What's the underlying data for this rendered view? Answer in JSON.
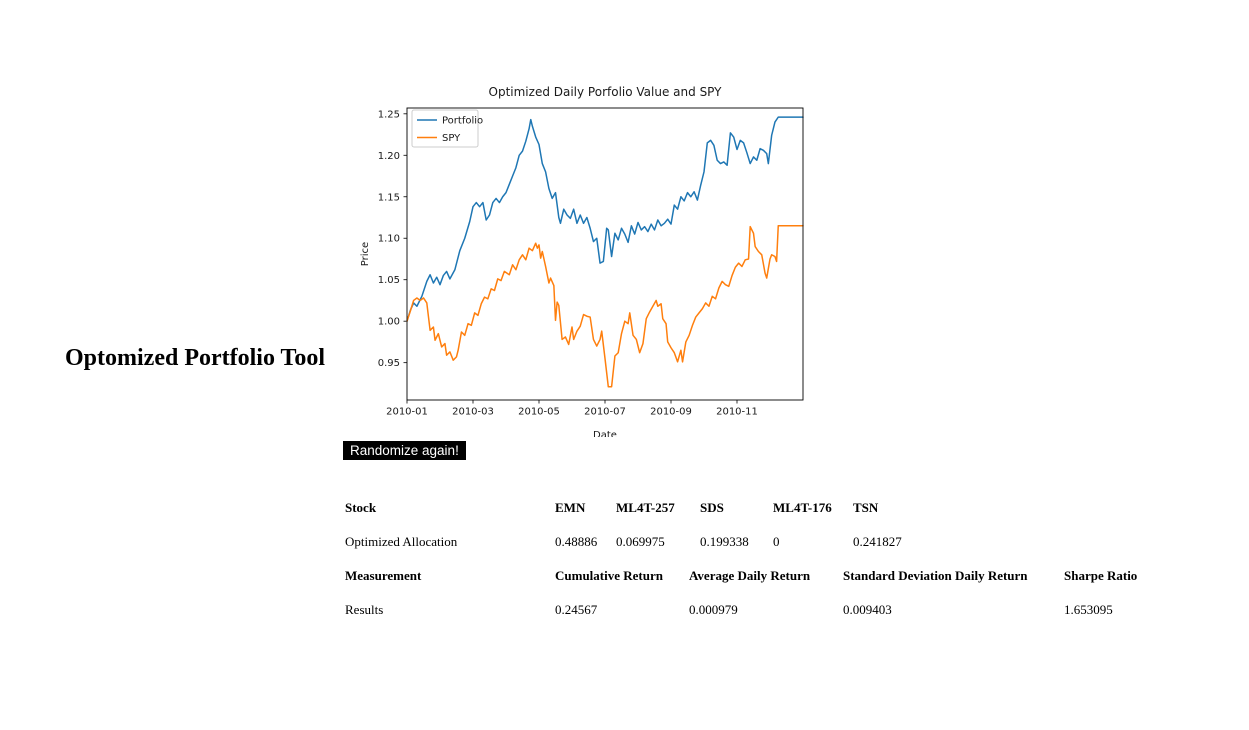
{
  "page": {
    "title": "Optomized Portfolio Tool"
  },
  "randomize_button": {
    "label": "Randomize again!",
    "bg": "#000000",
    "fg": "#ffffff"
  },
  "allocation_table": {
    "header": [
      "Stock",
      "EMN",
      "ML4T-257",
      "SDS",
      "ML4T-176",
      "TSN"
    ],
    "rows": [
      [
        "Optimized Allocation",
        "0.48886",
        "0.069975",
        "0.199338",
        "0",
        "0.241827"
      ]
    ]
  },
  "results_table": {
    "header": [
      "Measurement",
      "Cumulative Return",
      "Average Daily Return",
      "Standard Deviation Daily Return",
      "Sharpe Ratio"
    ],
    "rows": [
      [
        "Results",
        "0.24567",
        "0.000979",
        "0.009403",
        "1.653095"
      ]
    ]
  },
  "chart_data": {
    "type": "line",
    "title": "Optimized Daily Porfolio Value and SPY",
    "xlabel": "Date",
    "ylabel": "Price",
    "x_unit": "months since 2010-01-01",
    "xlim": [
      0,
      12
    ],
    "ylim": [
      0.905,
      1.257
    ],
    "xtick_pos": [
      0,
      2,
      4,
      6,
      8,
      10
    ],
    "xtick_labels": [
      "2010-01",
      "2010-03",
      "2010-05",
      "2010-07",
      "2010-09",
      "2010-11"
    ],
    "ytick_vals": [
      0.95,
      1.0,
      1.05,
      1.1,
      1.15,
      1.2,
      1.25
    ],
    "ytick_labels": [
      "0.95",
      "1.00",
      "1.05",
      "1.10",
      "1.15",
      "1.20",
      "1.25"
    ],
    "grid": false,
    "legend": {
      "position": "upper left",
      "entries": [
        "Portfolio",
        "SPY"
      ]
    },
    "series": [
      {
        "name": "Portfolio",
        "color": "#1f77b4",
        "x": [
          0,
          0.1,
          0.2,
          0.3,
          0.45,
          0.6,
          0.7,
          0.8,
          0.9,
          1.0,
          1.1,
          1.2,
          1.3,
          1.45,
          1.6,
          1.75,
          1.9,
          2.0,
          2.1,
          2.2,
          2.3,
          2.4,
          2.5,
          2.6,
          2.7,
          2.8,
          2.9,
          3.0,
          3.1,
          3.2,
          3.3,
          3.4,
          3.5,
          3.6,
          3.7,
          3.75,
          3.8,
          3.9,
          4.0,
          4.1,
          4.2,
          4.3,
          4.4,
          4.5,
          4.6,
          4.65,
          4.75,
          4.85,
          4.95,
          5.05,
          5.15,
          5.25,
          5.35,
          5.45,
          5.55,
          5.65,
          5.75,
          5.85,
          5.95,
          6.05,
          6.1,
          6.2,
          6.3,
          6.4,
          6.5,
          6.6,
          6.7,
          6.8,
          6.9,
          7.0,
          7.1,
          7.2,
          7.3,
          7.4,
          7.5,
          7.6,
          7.7,
          7.8,
          7.9,
          8.0,
          8.1,
          8.2,
          8.3,
          8.4,
          8.5,
          8.6,
          8.7,
          8.8,
          8.9,
          9.0,
          9.1,
          9.2,
          9.3,
          9.4,
          9.5,
          9.6,
          9.7,
          9.8,
          9.9,
          10.0,
          10.1,
          10.2,
          10.3,
          10.4,
          10.5,
          10.6,
          10.7,
          10.8,
          10.9,
          10.95,
          11.05,
          11.15,
          11.25,
          12.0
        ],
        "y": [
          1.0,
          1.013,
          1.022,
          1.018,
          1.03,
          1.048,
          1.056,
          1.046,
          1.053,
          1.044,
          1.055,
          1.06,
          1.051,
          1.062,
          1.085,
          1.1,
          1.12,
          1.138,
          1.143,
          1.138,
          1.143,
          1.122,
          1.128,
          1.143,
          1.148,
          1.143,
          1.15,
          1.155,
          1.165,
          1.175,
          1.185,
          1.2,
          1.205,
          1.217,
          1.232,
          1.243,
          1.235,
          1.222,
          1.213,
          1.19,
          1.18,
          1.16,
          1.148,
          1.155,
          1.125,
          1.118,
          1.135,
          1.128,
          1.124,
          1.135,
          1.118,
          1.128,
          1.118,
          1.125,
          1.112,
          1.096,
          1.1,
          1.07,
          1.072,
          1.112,
          1.11,
          1.078,
          1.106,
          1.098,
          1.112,
          1.105,
          1.095,
          1.115,
          1.105,
          1.119,
          1.11,
          1.114,
          1.108,
          1.117,
          1.11,
          1.122,
          1.115,
          1.118,
          1.123,
          1.117,
          1.14,
          1.135,
          1.15,
          1.145,
          1.155,
          1.15,
          1.156,
          1.146,
          1.164,
          1.18,
          1.215,
          1.218,
          1.212,
          1.194,
          1.19,
          1.192,
          1.188,
          1.227,
          1.222,
          1.207,
          1.218,
          1.215,
          1.203,
          1.19,
          1.198,
          1.194,
          1.208,
          1.206,
          1.202,
          1.19,
          1.224,
          1.24,
          1.246,
          1.246
        ]
      },
      {
        "name": "SPY",
        "color": "#ff7f0e",
        "x": [
          0,
          0.1,
          0.2,
          0.3,
          0.4,
          0.5,
          0.6,
          0.7,
          0.8,
          0.85,
          0.95,
          1.05,
          1.15,
          1.2,
          1.3,
          1.4,
          1.5,
          1.55,
          1.65,
          1.75,
          1.85,
          1.95,
          2.05,
          2.15,
          2.25,
          2.35,
          2.45,
          2.55,
          2.65,
          2.75,
          2.85,
          2.95,
          3.1,
          3.2,
          3.3,
          3.4,
          3.5,
          3.6,
          3.7,
          3.8,
          3.9,
          3.95,
          4.0,
          4.05,
          4.1,
          4.2,
          4.3,
          4.35,
          4.45,
          4.5,
          4.55,
          4.6,
          4.7,
          4.8,
          4.9,
          5.0,
          5.05,
          5.15,
          5.25,
          5.35,
          5.45,
          5.55,
          5.65,
          5.75,
          5.85,
          5.9,
          6.0,
          6.05,
          6.1,
          6.2,
          6.3,
          6.4,
          6.5,
          6.6,
          6.7,
          6.75,
          6.85,
          6.95,
          7.05,
          7.15,
          7.25,
          7.35,
          7.45,
          7.55,
          7.6,
          7.7,
          7.75,
          7.85,
          7.9,
          8.0,
          8.1,
          8.2,
          8.3,
          8.35,
          8.45,
          8.55,
          8.65,
          8.75,
          8.85,
          8.95,
          9.05,
          9.15,
          9.25,
          9.35,
          9.45,
          9.55,
          9.65,
          9.75,
          9.85,
          9.95,
          10.05,
          10.15,
          10.25,
          10.35,
          10.4,
          10.5,
          10.55,
          10.65,
          10.75,
          10.85,
          10.9,
          11.0,
          11.05,
          11.15,
          11.2,
          11.25,
          12.0
        ],
        "y": [
          1.0,
          1.012,
          1.025,
          1.028,
          1.025,
          1.028,
          1.022,
          0.989,
          0.993,
          0.977,
          0.985,
          0.969,
          0.973,
          0.959,
          0.963,
          0.953,
          0.957,
          0.965,
          0.987,
          0.983,
          0.997,
          0.995,
          1.01,
          1.007,
          1.021,
          1.029,
          1.027,
          1.039,
          1.037,
          1.051,
          1.049,
          1.06,
          1.056,
          1.068,
          1.062,
          1.074,
          1.08,
          1.074,
          1.088,
          1.085,
          1.094,
          1.088,
          1.092,
          1.076,
          1.084,
          1.066,
          1.046,
          1.052,
          1.043,
          1.001,
          1.023,
          1.019,
          0.978,
          0.981,
          0.972,
          0.993,
          0.978,
          0.988,
          0.994,
          1.008,
          1.006,
          1.005,
          0.978,
          0.97,
          0.978,
          0.988,
          0.955,
          0.938,
          0.921,
          0.921,
          0.958,
          0.962,
          0.985,
          1.0,
          0.997,
          1.01,
          0.983,
          0.978,
          0.962,
          0.973,
          1.003,
          1.011,
          1.018,
          1.025,
          1.018,
          1.021,
          1.003,
          0.997,
          0.975,
          0.968,
          0.962,
          0.951,
          0.965,
          0.951,
          0.975,
          0.983,
          0.995,
          1.005,
          1.01,
          1.015,
          1.022,
          1.018,
          1.03,
          1.027,
          1.04,
          1.048,
          1.044,
          1.042,
          1.055,
          1.065,
          1.07,
          1.066,
          1.074,
          1.075,
          1.114,
          1.106,
          1.09,
          1.084,
          1.08,
          1.058,
          1.052,
          1.075,
          1.08,
          1.078,
          1.072,
          1.115,
          1.115
        ]
      }
    ]
  }
}
